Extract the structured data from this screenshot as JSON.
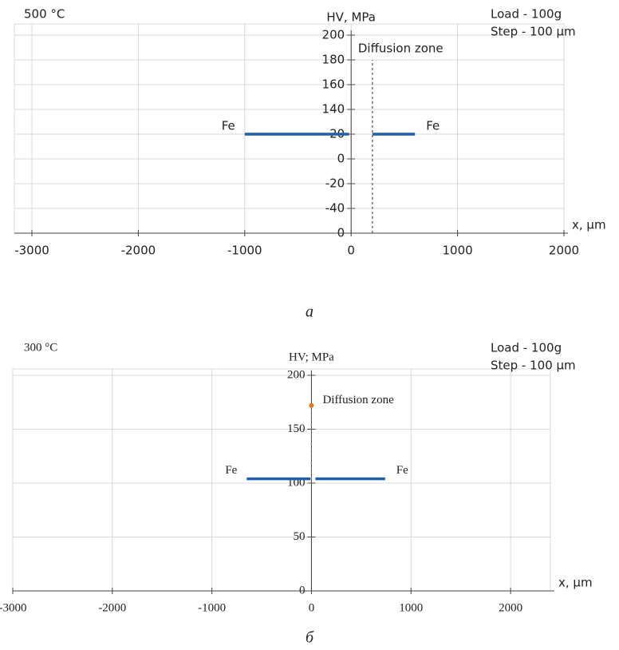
{
  "chart_data": [
    {
      "type": "line",
      "title": "500 °C",
      "y_label": "HV, MPa",
      "x_label": "x, µm",
      "notes": [
        "Load - 100g",
        "Step - 100 µm"
      ],
      "annotation": "Diffusion zone",
      "caption": "a",
      "xlim": [
        -3000,
        2000
      ],
      "xticks": [
        -3000,
        -2000,
        -1000,
        0,
        1000,
        2000
      ],
      "ylim": [
        0,
        200
      ],
      "yticks": [
        {
          "value": 0,
          "label": "0"
        },
        {
          "value": 25,
          "label": "-40"
        },
        {
          "value": 50,
          "label": "-20"
        },
        {
          "value": 75,
          "label": "0"
        },
        {
          "value": 100,
          "label": "20"
        },
        {
          "value": 125,
          "label": "140"
        },
        {
          "value": 150,
          "label": "160"
        },
        {
          "value": 175,
          "label": "180"
        },
        200
      ],
      "grid": true,
      "series": [
        {
          "name": "Fe",
          "color": "#1f5fa8",
          "x": [
            -1000,
            -20
          ],
          "values": [
            100,
            100
          ]
        },
        {
          "name": "Fe",
          "color": "#1f5fa8",
          "x": [
            200,
            600
          ],
          "values": [
            100,
            100
          ]
        },
        {
          "color": "#555555",
          "dashed": true,
          "x": [
            200,
            200
          ],
          "values": [
            0,
            175
          ]
        }
      ]
    },
    {
      "type": "line",
      "title": "300 °C",
      "y_label": "HV; MPa",
      "x_label": "x, µm",
      "notes": [
        "Load - 100g",
        "Step - 100 µm"
      ],
      "annotation": "Diffusion zone",
      "caption": "б",
      "xlim": [
        -3000,
        2400
      ],
      "xticks": [
        -3000,
        -2000,
        -1000,
        0,
        1000,
        2000
      ],
      "ylim": [
        0,
        200
      ],
      "yticks": [
        0,
        50,
        100,
        150,
        200
      ],
      "grid": true,
      "series": [
        {
          "name": "Fe",
          "color": "#1f5fa8",
          "x": [
            -650,
            -10
          ],
          "values": [
            104,
            104
          ]
        },
        {
          "name": "Fe",
          "color": "#1f5fa8",
          "x": [
            40,
            740
          ],
          "values": [
            104,
            104
          ]
        },
        {
          "color": "#777777",
          "dashed": true,
          "x": [
            0,
            0
          ],
          "values": [
            104,
            172
          ]
        },
        {
          "color": "#e07b1a",
          "marker": true,
          "x": [
            0
          ],
          "values": [
            172
          ]
        }
      ]
    }
  ]
}
